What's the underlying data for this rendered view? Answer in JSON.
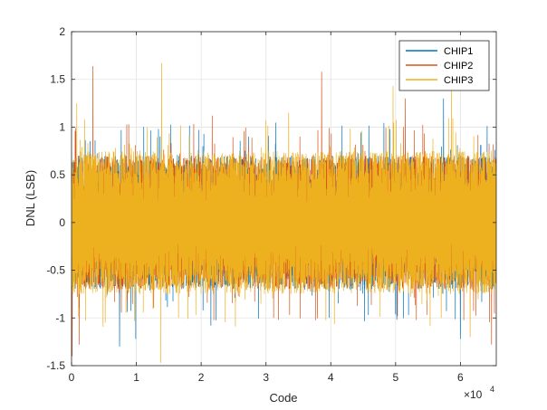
{
  "chart_data": {
    "type": "line",
    "title": "",
    "xlabel": "Code",
    "ylabel": "DNL (LSB)",
    "x_exponent_label": "×10",
    "x_exponent_power": "4",
    "xlim": [
      0,
      65536
    ],
    "ylim": [
      -1.5,
      2
    ],
    "x_tick_values": [
      0,
      10000,
      20000,
      30000,
      40000,
      50000,
      60000
    ],
    "x_tick_labels": [
      "0",
      "1",
      "2",
      "3",
      "4",
      "5",
      "6"
    ],
    "y_tick_values": [
      -1.5,
      -1,
      -0.5,
      0,
      0.5,
      1,
      1.5,
      2
    ],
    "y_tick_labels": [
      "-1.5",
      "-1",
      "-0.5",
      "0",
      "0.5",
      "1",
      "1.5",
      "2"
    ],
    "grid": true,
    "legend_position": "top-right",
    "series": [
      {
        "name": "CHIP1",
        "color": "#0072BD",
        "typical_range": [
          -0.7,
          0.7
        ],
        "extremes": [
          {
            "x": 7400,
            "y": -1.3
          },
          {
            "x": 9900,
            "y": -1.22
          },
          {
            "x": 21500,
            "y": -1.08
          },
          {
            "x": 45800,
            "y": -0.97
          },
          {
            "x": 57400,
            "y": 1.3
          },
          {
            "x": 60000,
            "y": -1.22
          }
        ]
      },
      {
        "name": "CHIP2",
        "color": "#D95319",
        "typical_range": [
          -0.7,
          0.7
        ],
        "extremes": [
          {
            "x": 3300,
            "y": 1.64
          },
          {
            "x": 100,
            "y": -1.4
          },
          {
            "x": 1200,
            "y": -1.28
          },
          {
            "x": 38600,
            "y": 1.58
          },
          {
            "x": 51500,
            "y": 1.3
          },
          {
            "x": 64800,
            "y": -1.28
          },
          {
            "x": 21700,
            "y": 1.12
          }
        ]
      },
      {
        "name": "CHIP3",
        "color": "#EDB120",
        "typical_range": [
          -0.75,
          0.75
        ],
        "extremes": [
          {
            "x": 13900,
            "y": 1.67
          },
          {
            "x": 13800,
            "y": -1.47
          },
          {
            "x": 49600,
            "y": 1.43
          },
          {
            "x": 58600,
            "y": 1.42
          },
          {
            "x": 61500,
            "y": -1.2
          },
          {
            "x": 5200,
            "y": -1.05
          },
          {
            "x": 33500,
            "y": 1.15
          },
          {
            "x": 800,
            "y": 1.25
          }
        ]
      }
    ]
  }
}
